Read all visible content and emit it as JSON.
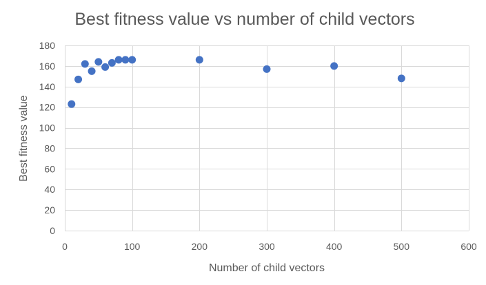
{
  "chart_data": {
    "type": "scatter",
    "title": "Best fitness value vs number of child vectors",
    "xlabel": "Number of child vectors",
    "ylabel": "Best fitness value",
    "xlim": [
      0,
      600
    ],
    "ylim": [
      0,
      180
    ],
    "xticks": [
      0,
      100,
      200,
      300,
      400,
      500,
      600
    ],
    "yticks": [
      0,
      20,
      40,
      60,
      80,
      100,
      120,
      140,
      160,
      180
    ],
    "grid": true,
    "legend": "none",
    "colors": {
      "marker": "#4472C4",
      "grid": "#D9D9D9",
      "text": "#595959"
    },
    "series": [
      {
        "x": [
          10,
          20,
          30,
          40,
          50,
          60,
          70,
          80,
          90,
          100,
          200,
          300,
          400,
          500
        ],
        "y": [
          123,
          147,
          162,
          155,
          164,
          159,
          163,
          166,
          166,
          166,
          166,
          157,
          160,
          148
        ]
      }
    ]
  }
}
